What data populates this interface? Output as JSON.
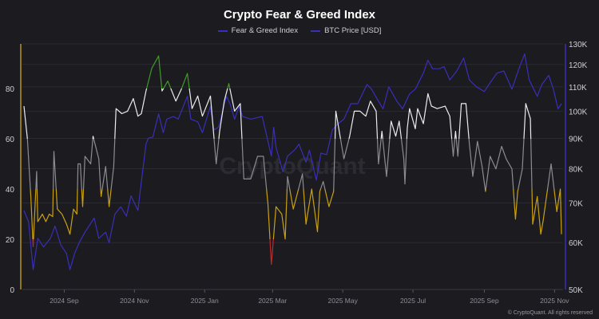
{
  "chart_data": {
    "type": "line",
    "title": "Crypto Fear & Greed Index",
    "legend_placement": "top-center",
    "grid": true,
    "x_ticks": [
      "2024 Sep",
      "2024 Nov",
      "2025 Jan",
      "2025 Mar",
      "2025 May",
      "2025 Jul",
      "2025 Sep",
      "2025 Nov"
    ],
    "x_tick_dates": [
      "2024-09-01",
      "2024-11-01",
      "2025-01-01",
      "2025-03-01",
      "2025-05-01",
      "2025-07-01",
      "2025-09-01",
      "2025-11-01"
    ],
    "x_range": [
      "2024-07-28",
      "2025-11-07"
    ],
    "y_left": {
      "range": [
        0,
        100
      ],
      "ticks": [
        "0",
        "20",
        "40",
        "60",
        "80"
      ],
      "tick_values": [
        0,
        20,
        40,
        60,
        80
      ],
      "scale": "linear"
    },
    "y_right": {
      "range": [
        50000,
        130000
      ],
      "ticks": [
        "50K",
        "60K",
        "70K",
        "80K",
        "90K",
        "100K",
        "110K",
        "120K",
        "130K"
      ],
      "tick_values": [
        50000,
        60000,
        70000,
        80000,
        90000,
        100000,
        110000,
        120000,
        130000
      ],
      "scale": "log"
    },
    "fg_levels": [
      {
        "min": 0,
        "max": 20,
        "color": "#c0282a"
      },
      {
        "min": 20,
        "max": 40,
        "color": "#c9a010"
      },
      {
        "min": 40,
        "max": 60,
        "color": "#8c8c90"
      },
      {
        "min": 60,
        "max": 80,
        "color": "#ececec"
      },
      {
        "min": 80,
        "max": 100,
        "color": "#3f9a25"
      }
    ],
    "series": [
      {
        "name": "Fear & Greed Index",
        "axis": "left",
        "legend_color": "#3a2fb8",
        "points": [
          [
            "2024-07-28",
            73
          ],
          [
            "2024-07-31",
            60
          ],
          [
            "2024-08-03",
            37
          ],
          [
            "2024-08-05",
            17
          ],
          [
            "2024-08-08",
            47
          ],
          [
            "2024-08-09",
            27
          ],
          [
            "2024-08-13",
            30
          ],
          [
            "2024-08-16",
            27
          ],
          [
            "2024-08-19",
            30
          ],
          [
            "2024-08-22",
            29
          ],
          [
            "2024-08-23",
            55
          ],
          [
            "2024-08-26",
            32
          ],
          [
            "2024-08-30",
            30
          ],
          [
            "2024-09-03",
            26
          ],
          [
            "2024-09-06",
            22
          ],
          [
            "2024-09-09",
            32
          ],
          [
            "2024-09-12",
            30
          ],
          [
            "2024-09-13",
            50
          ],
          [
            "2024-09-15",
            50
          ],
          [
            "2024-09-17",
            33
          ],
          [
            "2024-09-19",
            53
          ],
          [
            "2024-09-24",
            50
          ],
          [
            "2024-09-26",
            61
          ],
          [
            "2024-10-01",
            52
          ],
          [
            "2024-10-03",
            37
          ],
          [
            "2024-10-07",
            49
          ],
          [
            "2024-10-10",
            33
          ],
          [
            "2024-10-14",
            49
          ],
          [
            "2024-10-16",
            72
          ],
          [
            "2024-10-21",
            70
          ],
          [
            "2024-10-26",
            71
          ],
          [
            "2024-10-31",
            76
          ],
          [
            "2024-11-04",
            69
          ],
          [
            "2024-11-07",
            70
          ],
          [
            "2024-11-11",
            79
          ],
          [
            "2024-11-16",
            88
          ],
          [
            "2024-11-22",
            93
          ],
          [
            "2024-11-25",
            79
          ],
          [
            "2024-11-30",
            83
          ],
          [
            "2024-12-07",
            75
          ],
          [
            "2024-12-12",
            80
          ],
          [
            "2024-12-17",
            86
          ],
          [
            "2024-12-21",
            72
          ],
          [
            "2024-12-26",
            77
          ],
          [
            "2024-12-30",
            69
          ],
          [
            "2025-01-06",
            77
          ],
          [
            "2025-01-11",
            50
          ],
          [
            "2025-01-14",
            63
          ],
          [
            "2025-01-18",
            75
          ],
          [
            "2025-01-22",
            82
          ],
          [
            "2025-01-27",
            71
          ],
          [
            "2025-02-01",
            74
          ],
          [
            "2025-02-04",
            44
          ],
          [
            "2025-02-10",
            44
          ],
          [
            "2025-02-16",
            53
          ],
          [
            "2025-02-21",
            53
          ],
          [
            "2025-02-25",
            34
          ],
          [
            "2025-02-28",
            10
          ],
          [
            "2025-03-04",
            33
          ],
          [
            "2025-03-09",
            30
          ],
          [
            "2025-03-12",
            20
          ],
          [
            "2025-03-14",
            45
          ],
          [
            "2025-03-19",
            32
          ],
          [
            "2025-03-27",
            46
          ],
          [
            "2025-03-30",
            26
          ],
          [
            "2025-04-04",
            40
          ],
          [
            "2025-04-09",
            23
          ],
          [
            "2025-04-11",
            39
          ],
          [
            "2025-04-14",
            43
          ],
          [
            "2025-04-19",
            33
          ],
          [
            "2025-04-23",
            39
          ],
          [
            "2025-04-25",
            71
          ],
          [
            "2025-05-02",
            52
          ],
          [
            "2025-05-07",
            61
          ],
          [
            "2025-05-11",
            71
          ],
          [
            "2025-05-16",
            71
          ],
          [
            "2025-05-21",
            69
          ],
          [
            "2025-05-25",
            75
          ],
          [
            "2025-05-30",
            71
          ],
          [
            "2025-06-01",
            50
          ],
          [
            "2025-06-04",
            63
          ],
          [
            "2025-06-08",
            45
          ],
          [
            "2025-06-12",
            67
          ],
          [
            "2025-06-16",
            61
          ],
          [
            "2025-06-19",
            67
          ],
          [
            "2025-06-23",
            52
          ],
          [
            "2025-06-24",
            42
          ],
          [
            "2025-06-26",
            64
          ],
          [
            "2025-06-28",
            72
          ],
          [
            "2025-07-03",
            64
          ],
          [
            "2025-07-05",
            72
          ],
          [
            "2025-07-10",
            66
          ],
          [
            "2025-07-14",
            78
          ],
          [
            "2025-07-17",
            73
          ],
          [
            "2025-07-22",
            72
          ],
          [
            "2025-07-29",
            73
          ],
          [
            "2025-08-02",
            69
          ],
          [
            "2025-08-05",
            53
          ],
          [
            "2025-08-07",
            63
          ],
          [
            "2025-08-09",
            53
          ],
          [
            "2025-08-12",
            74
          ],
          [
            "2025-08-16",
            74
          ],
          [
            "2025-08-19",
            58
          ],
          [
            "2025-08-22",
            45
          ],
          [
            "2025-08-26",
            59
          ],
          [
            "2025-08-30",
            49
          ],
          [
            "2025-09-02",
            39
          ],
          [
            "2025-09-06",
            53
          ],
          [
            "2025-09-11",
            48
          ],
          [
            "2025-09-16",
            57
          ],
          [
            "2025-09-20",
            52
          ],
          [
            "2025-09-25",
            48
          ],
          [
            "2025-09-28",
            28
          ],
          [
            "2025-09-30",
            39
          ],
          [
            "2025-10-04",
            48
          ],
          [
            "2025-10-07",
            74
          ],
          [
            "2025-10-11",
            68
          ],
          [
            "2025-10-13",
            26
          ],
          [
            "2025-10-17",
            37
          ],
          [
            "2025-10-20",
            22
          ],
          [
            "2025-10-22",
            27
          ],
          [
            "2025-10-29",
            50
          ],
          [
            "2025-11-03",
            31
          ],
          [
            "2025-11-06",
            40
          ],
          [
            "2025-11-07",
            22
          ]
        ]
      },
      {
        "name": "BTC Price [USD]",
        "axis": "right",
        "color": "#3a2fb8",
        "points": [
          [
            "2024-07-28",
            68000
          ],
          [
            "2024-08-01",
            65000
          ],
          [
            "2024-08-05",
            54000
          ],
          [
            "2024-08-09",
            61000
          ],
          [
            "2024-08-14",
            59000
          ],
          [
            "2024-08-20",
            61000
          ],
          [
            "2024-08-24",
            64000
          ],
          [
            "2024-08-29",
            59500
          ],
          [
            "2024-09-03",
            57500
          ],
          [
            "2024-09-06",
            54000
          ],
          [
            "2024-09-10",
            57500
          ],
          [
            "2024-09-14",
            60000
          ],
          [
            "2024-09-19",
            62500
          ],
          [
            "2024-09-27",
            66000
          ],
          [
            "2024-10-01",
            61000
          ],
          [
            "2024-10-07",
            62500
          ],
          [
            "2024-10-10",
            60000
          ],
          [
            "2024-10-15",
            67000
          ],
          [
            "2024-10-20",
            69000
          ],
          [
            "2024-10-25",
            66500
          ],
          [
            "2024-10-29",
            72000
          ],
          [
            "2024-11-04",
            68000
          ],
          [
            "2024-11-07",
            76000
          ],
          [
            "2024-11-11",
            88000
          ],
          [
            "2024-11-13",
            90000
          ],
          [
            "2024-11-17",
            90500
          ],
          [
            "2024-11-22",
            99000
          ],
          [
            "2024-11-26",
            92000
          ],
          [
            "2024-11-29",
            97000
          ],
          [
            "2024-12-05",
            98000
          ],
          [
            "2024-12-09",
            97000
          ],
          [
            "2024-12-17",
            106000
          ],
          [
            "2024-12-20",
            97000
          ],
          [
            "2024-12-26",
            96000
          ],
          [
            "2024-12-30",
            92000
          ],
          [
            "2025-01-06",
            102000
          ],
          [
            "2025-01-09",
            93000
          ],
          [
            "2025-01-13",
            94000
          ],
          [
            "2025-01-20",
            106000
          ],
          [
            "2025-01-23",
            103000
          ],
          [
            "2025-01-27",
            97000
          ],
          [
            "2025-01-31",
            102000
          ],
          [
            "2025-02-03",
            98000
          ],
          [
            "2025-02-10",
            97000
          ],
          [
            "2025-02-20",
            98000
          ],
          [
            "2025-02-25",
            89000
          ],
          [
            "2025-02-28",
            84000
          ],
          [
            "2025-03-02",
            94000
          ],
          [
            "2025-03-04",
            87000
          ],
          [
            "2025-03-10",
            79000
          ],
          [
            "2025-03-14",
            84000
          ],
          [
            "2025-03-20",
            86000
          ],
          [
            "2025-03-24",
            88000
          ],
          [
            "2025-03-30",
            82000
          ],
          [
            "2025-04-02",
            86000
          ],
          [
            "2025-04-08",
            76500
          ],
          [
            "2025-04-12",
            85000
          ],
          [
            "2025-04-17",
            84500
          ],
          [
            "2025-04-22",
            93000
          ],
          [
            "2025-04-26",
            95000
          ],
          [
            "2025-05-02",
            97000
          ],
          [
            "2025-05-08",
            103000
          ],
          [
            "2025-05-14",
            103000
          ],
          [
            "2025-05-22",
            111000
          ],
          [
            "2025-05-26",
            109000
          ],
          [
            "2025-06-01",
            104000
          ],
          [
            "2025-06-05",
            101000
          ],
          [
            "2025-06-10",
            110000
          ],
          [
            "2025-06-17",
            104000
          ],
          [
            "2025-06-22",
            101000
          ],
          [
            "2025-06-28",
            107000
          ],
          [
            "2025-07-03",
            109000
          ],
          [
            "2025-07-10",
            116000
          ],
          [
            "2025-07-14",
            122000
          ],
          [
            "2025-07-18",
            118000
          ],
          [
            "2025-07-24",
            118000
          ],
          [
            "2025-07-28",
            119000
          ],
          [
            "2025-08-02",
            113000
          ],
          [
            "2025-08-08",
            117000
          ],
          [
            "2025-08-14",
            123000
          ],
          [
            "2025-08-19",
            113000
          ],
          [
            "2025-08-25",
            110000
          ],
          [
            "2025-09-01",
            108000
          ],
          [
            "2025-09-05",
            111000
          ],
          [
            "2025-09-12",
            116000
          ],
          [
            "2025-09-18",
            117000
          ],
          [
            "2025-09-25",
            109000
          ],
          [
            "2025-10-01",
            118000
          ],
          [
            "2025-10-06",
            125000
          ],
          [
            "2025-10-10",
            113000
          ],
          [
            "2025-10-17",
            106000
          ],
          [
            "2025-10-21",
            111000
          ],
          [
            "2025-10-27",
            115000
          ],
          [
            "2025-10-31",
            109000
          ],
          [
            "2025-11-04",
            101000
          ],
          [
            "2025-11-07",
            103000
          ]
        ]
      }
    ],
    "watermark": "CryptoQuant"
  },
  "colors": {
    "background": "#1b1b20",
    "btc": "#3a2fb8",
    "left_axis": "#b8961a",
    "grid": "#2a2a31"
  },
  "footer": "© CryptoQuant. All rights reserved"
}
